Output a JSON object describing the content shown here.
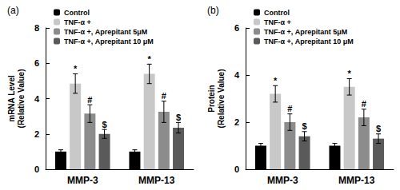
{
  "chart_data": [
    {
      "type": "bar",
      "title": "(a)",
      "ylabel": "mRNA Level (Relative Value)",
      "categories": [
        "MMP-3",
        "MMP-13"
      ],
      "ylim": [
        0,
        8
      ],
      "yticks": [
        0,
        2,
        4,
        6,
        8
      ],
      "grid": false,
      "legend": "upper left",
      "series": [
        {
          "name": "Control",
          "color": "#000000",
          "values": [
            1.0,
            1.0
          ],
          "errors": [
            0.1,
            0.1
          ]
        },
        {
          "name": "TNF-α +",
          "color": "#c8c8c8",
          "values": [
            4.85,
            5.4
          ],
          "errors": [
            0.55,
            0.55
          ],
          "annotations": [
            "*",
            "*"
          ]
        },
        {
          "name": "TNF-α +, Aprepitant 5μM",
          "color": "#8c8c8c",
          "values": [
            3.15,
            3.25
          ],
          "errors": [
            0.5,
            0.6
          ],
          "annotations": [
            "#",
            "#"
          ]
        },
        {
          "name": "TNF-α +, Aprepitant 10 μM",
          "color": "#5a5a5a",
          "values": [
            2.0,
            2.35
          ],
          "errors": [
            0.25,
            0.3
          ],
          "annotations": [
            "$",
            "$"
          ]
        }
      ]
    },
    {
      "type": "bar",
      "title": "(b)",
      "ylabel": "Protein (Relative Value)",
      "categories": [
        "MMP-3",
        "MMP-13"
      ],
      "ylim": [
        0,
        6
      ],
      "yticks": [
        0,
        2,
        4,
        6
      ],
      "grid": false,
      "legend": "upper left",
      "series": [
        {
          "name": "Control",
          "color": "#000000",
          "values": [
            1.0,
            1.0
          ],
          "errors": [
            0.1,
            0.1
          ]
        },
        {
          "name": "TNF-α +",
          "color": "#c8c8c8",
          "values": [
            3.2,
            3.5
          ],
          "errors": [
            0.35,
            0.35
          ],
          "annotations": [
            "*",
            "*"
          ]
        },
        {
          "name": "TNF-α +, Aprepitant 5μM",
          "color": "#8c8c8c",
          "values": [
            2.0,
            2.2
          ],
          "errors": [
            0.35,
            0.35
          ],
          "annotations": [
            "#",
            "#"
          ]
        },
        {
          "name": "TNF-α +, Aprepitant 10 μM",
          "color": "#5a5a5a",
          "values": [
            1.4,
            1.3
          ],
          "errors": [
            0.2,
            0.2
          ],
          "annotations": [
            "$",
            "$"
          ]
        }
      ]
    }
  ]
}
